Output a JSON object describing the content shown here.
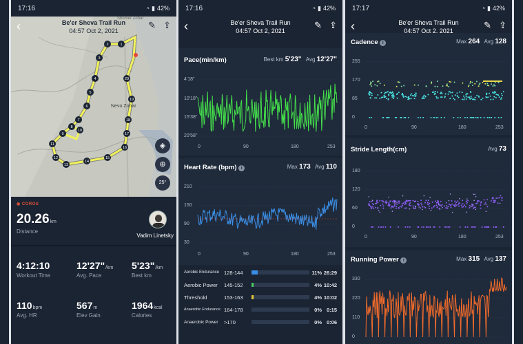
{
  "status_bars": [
    {
      "time": "17:16",
      "battery": "42%"
    },
    {
      "time": "17:16",
      "battery": "42%"
    },
    {
      "time": "17:17",
      "battery": "42%"
    }
  ],
  "activity": {
    "title": "Be'er Sheva Trail Run",
    "date": "04:57 Oct 2, 2021"
  },
  "map": {
    "town_label": "Nevo Zohar",
    "top_label": "Shomer Zohar",
    "km_markers": [
      "1",
      "2",
      "3",
      "4",
      "5",
      "6",
      "7",
      "8",
      "9",
      "10",
      "11",
      "12",
      "13",
      "14",
      "15",
      "16",
      "17",
      "18",
      "19",
      "20"
    ],
    "compass_label": "25°"
  },
  "summary": {
    "brand": "COROS",
    "distance_value": "20.26",
    "distance_unit": "km",
    "distance_label": "Distance",
    "user_name": "Vadim Linetsky",
    "stats": [
      {
        "value": "4:12:10",
        "unit": "",
        "label": "Workout Time"
      },
      {
        "value": "12'27\"",
        "unit": "/km",
        "label": "Avg. Pace"
      },
      {
        "value": "5'23\"",
        "unit": "/km",
        "label": "Best km"
      },
      {
        "value": "110",
        "unit": "bpm",
        "label": "Avg. HR"
      },
      {
        "value": "567",
        "unit": "m",
        "label": "Elev Gain"
      },
      {
        "value": "1964",
        "unit": "kcal",
        "label": "Calories"
      }
    ]
  },
  "pace": {
    "title": "Pace(min/km)",
    "best_label": "Best km",
    "best_value": "5'23\"",
    "avg_label": "Avg",
    "avg_value": "12'27\"",
    "y_ticks": [
      "4'18\"",
      "10'18\"",
      "15'38\"",
      "20'58\""
    ],
    "x_ticks": [
      "0",
      "90",
      "180",
      "253"
    ]
  },
  "heart_rate": {
    "title": "Heart Rate (bpm)",
    "max_label": "Max",
    "max_value": "173",
    "avg_label": "Avg",
    "avg_value": "110",
    "y_ticks": [
      "210",
      "150",
      "90",
      "30"
    ],
    "x_ticks": [
      "0",
      "90",
      "180",
      "253"
    ],
    "zones": [
      {
        "name": "Aerobic Endurance",
        "range": "128-144",
        "percent": "11%",
        "time": "26:29",
        "fill": 0.11,
        "color": "#3a8ee6"
      },
      {
        "name": "Aerobic Power",
        "range": "145-152",
        "percent": "4%",
        "time": "10:42",
        "fill": 0.04,
        "color": "#49c964"
      },
      {
        "name": "Threshold",
        "range": "153-163",
        "percent": "4%",
        "time": "10:02",
        "fill": 0.04,
        "color": "#e5c43a"
      },
      {
        "name": "Anaerobic Endurance",
        "range": "164-178",
        "percent": "0%",
        "time": "0:15",
        "fill": 0.0,
        "color": "#e58a3a"
      },
      {
        "name": "Anaerobic Power",
        "range": ">170",
        "percent": "0%",
        "time": "0:06",
        "fill": 0.0,
        "color": "#e54b3a"
      }
    ]
  },
  "cadence": {
    "title": "Cadence",
    "max_label": "Max",
    "max_value": "264",
    "avg_label": "Avg",
    "avg_value": "128",
    "y_ticks": [
      "255",
      "170",
      "85",
      "0"
    ],
    "x_ticks": [
      "0",
      "90",
      "180",
      "253"
    ]
  },
  "stride": {
    "title": "Stride Length(cm)",
    "avg_label": "Avg",
    "avg_value": "73",
    "y_ticks": [
      "180",
      "120",
      "60",
      "0"
    ],
    "x_ticks": [
      "0",
      "90",
      "180",
      "253"
    ]
  },
  "power": {
    "title": "Running Power",
    "max_label": "Max",
    "max_value": "315",
    "avg_label": "Avg",
    "avg_value": "137",
    "y_ticks": [
      "330",
      "220",
      "110",
      "0"
    ]
  },
  "colors": {
    "bg": "#1b2433",
    "panel": "#1f2a3b",
    "pace": "#44e04a",
    "hr": "#3b8fe6",
    "cadence_cyan": "#4be3e0",
    "stride": "#8a5cf0",
    "power": "#f26b2a",
    "route": "#f2f25a"
  }
}
